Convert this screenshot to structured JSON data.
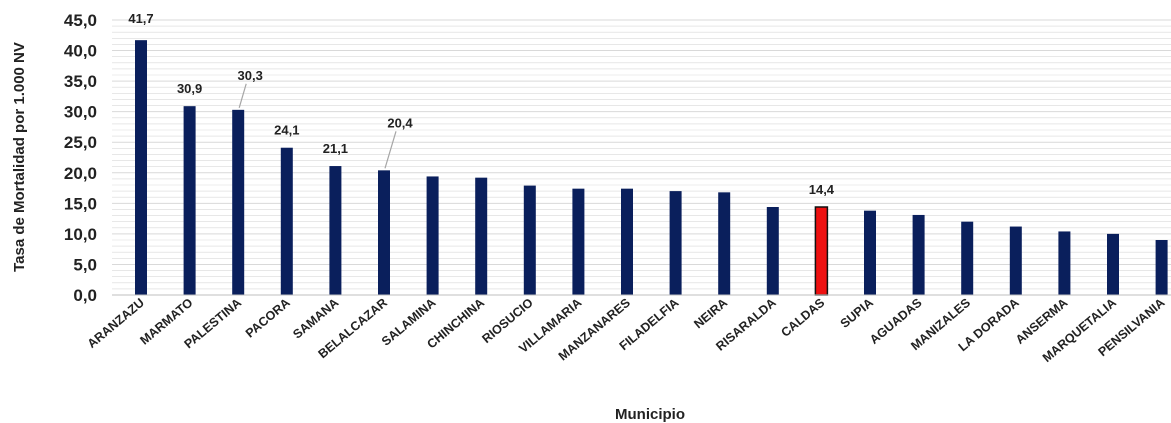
{
  "chart_data": {
    "type": "bar",
    "title": "",
    "xlabel": "Municipio",
    "ylabel": "Tasa de Mortalidad por 1.000 NV",
    "ylim": [
      0,
      45
    ],
    "ytick_step": 5,
    "yticks": [
      "0,0",
      "5,0",
      "10,0",
      "15,0",
      "20,0",
      "25,0",
      "30,0",
      "35,0",
      "40,0",
      "45,0"
    ],
    "grid": true,
    "legend": "none",
    "categories": [
      "ARANZAZU",
      "MARMATO",
      "PALESTINA",
      "PACORA",
      "SAMANA",
      "BELALCAZAR",
      "SALAMINA",
      "CHINCHINA",
      "RIOSUCIO",
      "VILLAMARIA",
      "MANZANARES",
      "FILADELFIA",
      "NEIRA",
      "RISARALDA",
      "CALDAS",
      "SUPIA",
      "AGUADAS",
      "MANIZALES",
      "LA DORADA",
      "ANSERMA",
      "MARQUETALIA",
      "PENSILVANIA"
    ],
    "values": [
      41.7,
      30.9,
      30.3,
      24.1,
      21.1,
      20.4,
      19.4,
      19.2,
      17.9,
      17.4,
      17.4,
      17.0,
      16.8,
      14.4,
      14.4,
      13.8,
      13.1,
      12.0,
      11.2,
      10.4,
      10.0,
      9.0
    ],
    "data_labels": {
      "ARANZAZU": "41,7",
      "MARMATO": "30,9",
      "PALESTINA": "30,3",
      "PACORA": "24,1",
      "SAMANA": "21,1",
      "BELALCAZAR": "20,4",
      "CALDAS": "14,4"
    },
    "colors": {
      "bar": "#0a1f5c",
      "highlight": "#ee1111",
      "highlight_category": "CALDAS",
      "grid": "#d9d9d9"
    }
  }
}
